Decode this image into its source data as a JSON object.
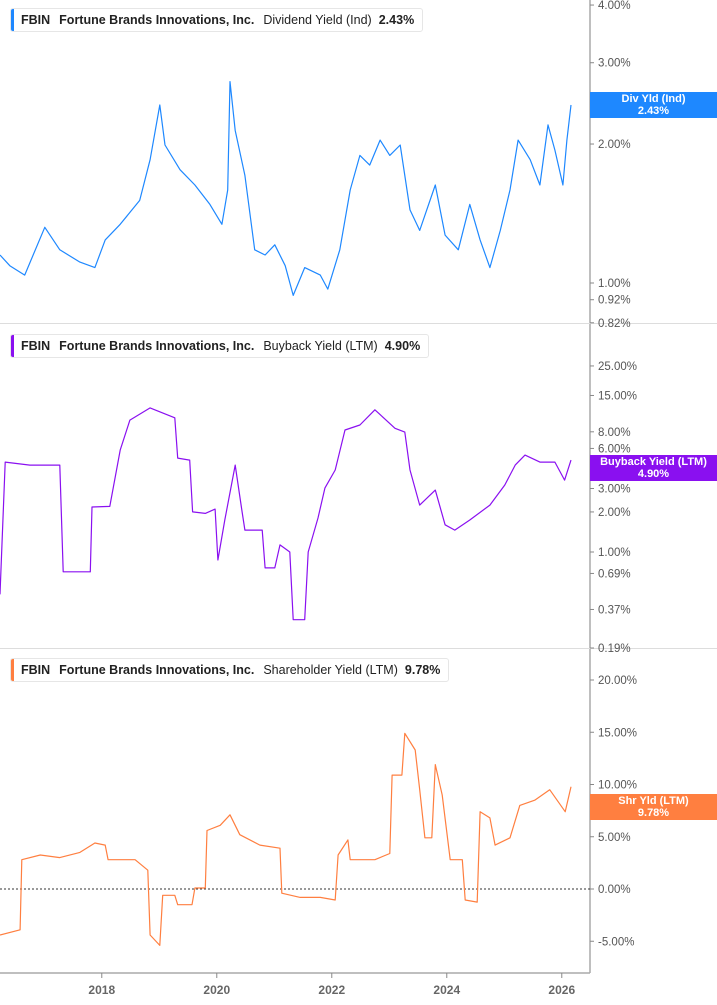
{
  "colors": {
    "dividend": "#1e88ff",
    "buyback": "#8a10f0",
    "shareholder": "#ff7f40",
    "axis": "#aaaaaa",
    "tick_text": "#555555"
  },
  "x_axis": {
    "ticks": [
      "2018",
      "2020",
      "2022",
      "2024",
      "2026"
    ],
    "tick_values": [
      2018,
      2020,
      2022,
      2024,
      2026
    ],
    "range": [
      2016.23,
      2026.5
    ]
  },
  "panels": [
    {
      "ticker": "FBIN",
      "company": "Fortune Brands Innovations, Inc.",
      "metric": "Dividend Yield (Ind)",
      "value": "2.43%",
      "badge_label": "Div Yld (Ind)",
      "badge_value": "2.43%"
    },
    {
      "ticker": "FBIN",
      "company": "Fortune Brands Innovations, Inc.",
      "metric": "Buyback Yield (LTM)",
      "value": "4.90%",
      "badge_label": "Buyback Yield (LTM)",
      "badge_value": "4.90%"
    },
    {
      "ticker": "FBIN",
      "company": "Fortune Brands Innovations, Inc.",
      "metric": "Shareholder Yield (LTM)",
      "value": "9.78%",
      "badge_label": "Shr Yld (LTM)",
      "badge_value": "9.78%"
    }
  ],
  "chart_data": [
    {
      "type": "line",
      "scale": "log",
      "ylim": [
        0.82,
        4.0
      ],
      "ytick_labels": [
        "4.00%",
        "3.00%",
        "2.00%",
        "1.00%",
        "0.92%",
        "0.82%"
      ],
      "ytick_values": [
        4,
        3,
        2,
        1,
        0.92,
        0.82
      ],
      "x": [
        2016.23,
        2016.4,
        2016.66,
        2017.01,
        2017.27,
        2017.62,
        2017.88,
        2018.06,
        2018.32,
        2018.66,
        2018.84,
        2019.01,
        2019.1,
        2019.36,
        2019.62,
        2019.88,
        2020.09,
        2020.19,
        2020.23,
        2020.32,
        2020.49,
        2020.66,
        2020.84,
        2021.01,
        2021.19,
        2021.33,
        2021.53,
        2021.8,
        2021.93,
        2022.14,
        2022.32,
        2022.49,
        2022.66,
        2022.84,
        2023.01,
        2023.19,
        2023.36,
        2023.53,
        2023.8,
        2023.97,
        2024.2,
        2024.4,
        2024.58,
        2024.75,
        2024.93,
        2025.1,
        2025.24,
        2025.45,
        2025.62,
        2025.76,
        2025.88,
        2026.02,
        2026.09,
        2026.16
      ],
      "y": [
        1.15,
        1.09,
        1.04,
        1.32,
        1.18,
        1.11,
        1.08,
        1.24,
        1.34,
        1.51,
        1.85,
        2.43,
        1.99,
        1.76,
        1.63,
        1.48,
        1.34,
        1.59,
        2.73,
        2.14,
        1.71,
        1.18,
        1.15,
        1.21,
        1.09,
        0.94,
        1.08,
        1.04,
        0.97,
        1.18,
        1.59,
        1.89,
        1.8,
        2.04,
        1.89,
        1.99,
        1.44,
        1.3,
        1.63,
        1.27,
        1.18,
        1.48,
        1.24,
        1.08,
        1.3,
        1.59,
        2.04,
        1.85,
        1.63,
        2.2,
        1.94,
        1.63,
        2.04,
        2.43
      ]
    },
    {
      "type": "line",
      "scale": "log",
      "ylim": [
        0.19,
        25.0
      ],
      "ytick_labels": [
        "25.00%",
        "15.00%",
        "8.00%",
        "6.00%",
        "3.00%",
        "2.00%",
        "1.00%",
        "0.69%",
        "0.37%",
        "0.19%"
      ],
      "ytick_values": [
        25,
        15,
        8,
        6,
        3,
        2,
        1,
        0.69,
        0.37,
        0.19
      ],
      "x": [
        2016.23,
        2016.32,
        2016.75,
        2017.27,
        2017.33,
        2017.8,
        2017.83,
        2018.14,
        2018.32,
        2018.49,
        2018.84,
        2019.27,
        2019.32,
        2019.53,
        2019.58,
        2019.8,
        2019.97,
        2020.02,
        2020.14,
        2020.32,
        2020.44,
        2020.49,
        2020.79,
        2020.84,
        2021.01,
        2021.1,
        2021.27,
        2021.33,
        2021.53,
        2021.59,
        2021.76,
        2021.88,
        2022.06,
        2022.23,
        2022.49,
        2022.75,
        2023.1,
        2023.27,
        2023.36,
        2023.53,
        2023.8,
        2023.97,
        2024.14,
        2024.4,
        2024.75,
        2025.01,
        2025.19,
        2025.36,
        2025.62,
        2025.88,
        2026.05,
        2026.16
      ],
      "y": [
        0.48,
        4.74,
        4.5,
        4.5,
        0.71,
        0.71,
        2.18,
        2.2,
        5.83,
        9.8,
        12.1,
        10.2,
        5.08,
        4.9,
        2.0,
        1.95,
        2.1,
        0.87,
        1.74,
        4.5,
        2.0,
        1.46,
        1.46,
        0.76,
        0.76,
        1.13,
        1.0,
        0.31,
        0.31,
        1.0,
        1.8,
        3.02,
        4.13,
        8.25,
        9.0,
        11.7,
        8.5,
        7.96,
        4.13,
        2.25,
        2.92,
        1.6,
        1.46,
        1.74,
        2.25,
        3.19,
        4.5,
        5.35,
        4.74,
        4.74,
        3.47,
        4.9
      ]
    },
    {
      "type": "line",
      "scale": "linear",
      "ylim": [
        -8,
        22
      ],
      "ytick_labels": [
        "20.00%",
        "15.00%",
        "10.00%",
        "5.00%",
        "0.00%",
        "-5.00%"
      ],
      "ytick_values": [
        20,
        15,
        10,
        5,
        0,
        -5
      ],
      "reference_line": 0,
      "x": [
        2016.23,
        2016.58,
        2016.61,
        2016.93,
        2017.27,
        2017.62,
        2017.88,
        2018.06,
        2018.11,
        2018.58,
        2018.8,
        2018.84,
        2019.01,
        2019.06,
        2019.27,
        2019.32,
        2019.57,
        2019.62,
        2019.8,
        2019.83,
        2020.06,
        2020.23,
        2020.4,
        2020.75,
        2021.1,
        2021.13,
        2021.45,
        2021.8,
        2022.06,
        2022.11,
        2022.28,
        2022.32,
        2022.75,
        2023.01,
        2023.05,
        2023.22,
        2023.27,
        2023.45,
        2023.53,
        2023.62,
        2023.74,
        2023.8,
        2023.92,
        2024.06,
        2024.27,
        2024.32,
        2024.53,
        2024.58,
        2024.75,
        2024.84,
        2025.1,
        2025.27,
        2025.53,
        2025.79,
        2026.06,
        2026.16
      ],
      "y": [
        -4.4,
        -3.9,
        2.8,
        3.25,
        3.0,
        3.5,
        4.4,
        4.2,
        2.8,
        2.8,
        1.8,
        -4.4,
        -5.4,
        -0.6,
        -0.6,
        -1.5,
        -1.5,
        0.1,
        0.1,
        5.6,
        6.1,
        7.1,
        5.2,
        4.2,
        3.9,
        -0.4,
        -0.8,
        -0.8,
        -1.05,
        3.25,
        4.7,
        2.8,
        2.8,
        3.4,
        10.9,
        10.9,
        14.9,
        13.3,
        9.5,
        4.9,
        4.9,
        11.9,
        9.0,
        2.8,
        2.8,
        -1.05,
        -1.25,
        7.4,
        6.8,
        4.2,
        4.9,
        8.0,
        8.5,
        9.5,
        7.4,
        9.78
      ]
    }
  ]
}
